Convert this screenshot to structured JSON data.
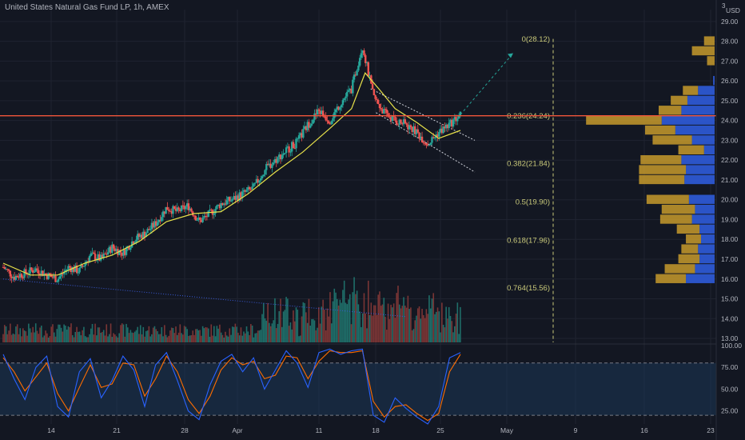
{
  "header": {
    "title": "United States Natural Gas Fund LP, 1h, AMEX"
  },
  "colors": {
    "background": "#131722",
    "grid": "#1f2330",
    "up": "#26a69a",
    "down": "#ef5350",
    "ma": "#e8e24a",
    "horizontal_line": "#f0553b",
    "fib_text": "#c9c97a",
    "volume_profile_up": "#2f5bd9",
    "volume_profile_down": "#c79a2b",
    "stoch_k": "#2962ff",
    "stoch_d": "#ff6d00",
    "stoch_band": "#1c3a5a"
  },
  "chart_data": [
    {
      "type": "candlestick",
      "title": "United States Natural Gas Fund LP, 1h, AMEX",
      "y_axis_unit": "USD",
      "y_axis_note": "3",
      "ylim": [
        12.8,
        29.6
      ],
      "y_ticks": [
        13.0,
        14.0,
        15.0,
        16.0,
        17.0,
        18.0,
        19.0,
        20.0,
        21.0,
        22.0,
        23.0,
        24.0,
        25.0,
        26.0,
        27.0,
        28.0,
        29.0
      ],
      "x_tick_labels": [
        "14",
        "21",
        "28",
        "Apr",
        "11",
        "18",
        "25",
        "May",
        "9",
        "16",
        "23"
      ],
      "price_path": [
        [
          0,
          16.6
        ],
        [
          4,
          16.1
        ],
        [
          8,
          16.3
        ],
        [
          12,
          16.5
        ],
        [
          16,
          16.2
        ],
        [
          20,
          16.0
        ],
        [
          24,
          16.6
        ],
        [
          28,
          16.4
        ],
        [
          32,
          17.2
        ],
        [
          36,
          17.0
        ],
        [
          40,
          17.6
        ],
        [
          44,
          17.3
        ],
        [
          48,
          18.0
        ],
        [
          52,
          18.3
        ],
        [
          56,
          18.8
        ],
        [
          60,
          19.6
        ],
        [
          64,
          19.4
        ],
        [
          68,
          19.7
        ],
        [
          72,
          18.9
        ],
        [
          76,
          19.3
        ],
        [
          80,
          19.8
        ],
        [
          84,
          20.0
        ],
        [
          88,
          20.3
        ],
        [
          92,
          20.6
        ],
        [
          96,
          21.5
        ],
        [
          100,
          22.0
        ],
        [
          104,
          22.5
        ],
        [
          108,
          22.9
        ],
        [
          112,
          23.8
        ],
        [
          116,
          24.5
        ],
        [
          120,
          24.0
        ],
        [
          124,
          24.9
        ],
        [
          128,
          25.6
        ],
        [
          132,
          27.8
        ],
        [
          136,
          25.2
        ],
        [
          140,
          24.4
        ],
        [
          144,
          24.0
        ],
        [
          148,
          23.8
        ],
        [
          152,
          23.4
        ],
        [
          156,
          22.8
        ],
        [
          160,
          23.4
        ],
        [
          164,
          23.8
        ],
        [
          168,
          24.3
        ]
      ],
      "moving_average_path": [
        [
          0,
          16.8
        ],
        [
          10,
          16.2
        ],
        [
          20,
          16.2
        ],
        [
          30,
          16.8
        ],
        [
          40,
          17.2
        ],
        [
          50,
          17.9
        ],
        [
          60,
          18.9
        ],
        [
          70,
          19.3
        ],
        [
          80,
          19.4
        ],
        [
          90,
          20.3
        ],
        [
          100,
          21.4
        ],
        [
          110,
          22.4
        ],
        [
          120,
          23.6
        ],
        [
          128,
          24.6
        ],
        [
          133,
          26.4
        ],
        [
          138,
          25.6
        ],
        [
          144,
          24.6
        ],
        [
          152,
          23.9
        ],
        [
          160,
          23.1
        ],
        [
          168,
          23.5
        ]
      ],
      "horizontal_line": 24.24,
      "fibonacci_levels": [
        {
          "ratio": "0",
          "price": 28.12,
          "label": "0(28.12)"
        },
        {
          "ratio": "0.236",
          "price": 24.24,
          "label": "0.236(24.24)"
        },
        {
          "ratio": "0.382",
          "price": 21.84,
          "label": "0.382(21.84)"
        },
        {
          "ratio": "0.5",
          "price": 19.9,
          "label": "0.5(19.90)"
        },
        {
          "ratio": "0.618",
          "price": 17.96,
          "label": "0.618(17.96)"
        },
        {
          "ratio": "0.764",
          "price": 15.56,
          "label": "0.764(15.56)"
        }
      ],
      "volume_profile": [
        {
          "price": 28.0,
          "up": 0.0,
          "down": 0.14
        },
        {
          "price": 27.5,
          "up": 0.0,
          "down": 0.3
        },
        {
          "price": 27.0,
          "up": 0.0,
          "down": 0.1
        },
        {
          "price": 26.0,
          "up": 0.02,
          "down": 0.0
        },
        {
          "price": 25.5,
          "up": 0.22,
          "down": 0.2
        },
        {
          "price": 25.0,
          "up": 0.36,
          "down": 0.22
        },
        {
          "price": 24.5,
          "up": 0.44,
          "down": 0.3
        },
        {
          "price": 24.0,
          "up": 0.7,
          "down": 1.0
        },
        {
          "price": 23.5,
          "up": 0.52,
          "down": 0.4
        },
        {
          "price": 23.0,
          "up": 0.3,
          "down": 0.52
        },
        {
          "price": 22.5,
          "up": 0.14,
          "down": 0.34
        },
        {
          "price": 22.0,
          "up": 0.44,
          "down": 0.54
        },
        {
          "price": 21.5,
          "up": 0.38,
          "down": 0.62
        },
        {
          "price": 21.0,
          "up": 0.4,
          "down": 0.6
        },
        {
          "price": 20.0,
          "up": 0.34,
          "down": 0.56
        },
        {
          "price": 19.5,
          "up": 0.26,
          "down": 0.44
        },
        {
          "price": 19.0,
          "up": 0.3,
          "down": 0.42
        },
        {
          "price": 18.5,
          "up": 0.2,
          "down": 0.3
        },
        {
          "price": 18.0,
          "up": 0.18,
          "down": 0.2
        },
        {
          "price": 17.5,
          "up": 0.22,
          "down": 0.22
        },
        {
          "price": 17.0,
          "up": 0.2,
          "down": 0.28
        },
        {
          "price": 16.5,
          "up": 0.26,
          "down": 0.4
        },
        {
          "price": 16.0,
          "up": 0.38,
          "down": 0.4
        }
      ]
    },
    {
      "type": "line",
      "ylim": [
        10,
        100
      ],
      "y_ticks": [
        25.0,
        50.0,
        75.0,
        100.0
      ],
      "band": [
        20,
        80
      ],
      "k_path": [
        [
          0,
          90
        ],
        [
          4,
          62
        ],
        [
          8,
          38
        ],
        [
          12,
          75
        ],
        [
          16,
          88
        ],
        [
          20,
          30
        ],
        [
          24,
          18
        ],
        [
          28,
          70
        ],
        [
          32,
          85
        ],
        [
          36,
          40
        ],
        [
          40,
          60
        ],
        [
          44,
          88
        ],
        [
          48,
          72
        ],
        [
          52,
          30
        ],
        [
          56,
          78
        ],
        [
          60,
          92
        ],
        [
          64,
          60
        ],
        [
          68,
          25
        ],
        [
          72,
          15
        ],
        [
          76,
          55
        ],
        [
          80,
          82
        ],
        [
          84,
          90
        ],
        [
          88,
          70
        ],
        [
          92,
          86
        ],
        [
          96,
          50
        ],
        [
          100,
          72
        ],
        [
          104,
          94
        ],
        [
          108,
          80
        ],
        [
          112,
          52
        ],
        [
          116,
          92
        ],
        [
          120,
          96
        ],
        [
          124,
          90
        ],
        [
          128,
          94
        ],
        [
          132,
          96
        ],
        [
          136,
          20
        ],
        [
          140,
          12
        ],
        [
          144,
          40
        ],
        [
          148,
          28
        ],
        [
          152,
          18
        ],
        [
          156,
          10
        ],
        [
          160,
          30
        ],
        [
          164,
          86
        ],
        [
          168,
          92
        ]
      ],
      "d_path": [
        [
          0,
          86
        ],
        [
          4,
          70
        ],
        [
          8,
          48
        ],
        [
          12,
          64
        ],
        [
          16,
          80
        ],
        [
          20,
          45
        ],
        [
          24,
          25
        ],
        [
          28,
          52
        ],
        [
          32,
          78
        ],
        [
          36,
          52
        ],
        [
          40,
          56
        ],
        [
          44,
          80
        ],
        [
          48,
          78
        ],
        [
          52,
          42
        ],
        [
          56,
          62
        ],
        [
          60,
          88
        ],
        [
          64,
          70
        ],
        [
          68,
          38
        ],
        [
          72,
          22
        ],
        [
          76,
          42
        ],
        [
          80,
          72
        ],
        [
          84,
          86
        ],
        [
          88,
          78
        ],
        [
          92,
          82
        ],
        [
          96,
          62
        ],
        [
          100,
          66
        ],
        [
          104,
          88
        ],
        [
          108,
          86
        ],
        [
          112,
          62
        ],
        [
          116,
          82
        ],
        [
          120,
          94
        ],
        [
          124,
          92
        ],
        [
          128,
          92
        ],
        [
          132,
          94
        ],
        [
          136,
          36
        ],
        [
          140,
          18
        ],
        [
          144,
          30
        ],
        [
          148,
          32
        ],
        [
          152,
          22
        ],
        [
          156,
          14
        ],
        [
          160,
          22
        ],
        [
          164,
          70
        ],
        [
          168,
          90
        ]
      ]
    }
  ]
}
